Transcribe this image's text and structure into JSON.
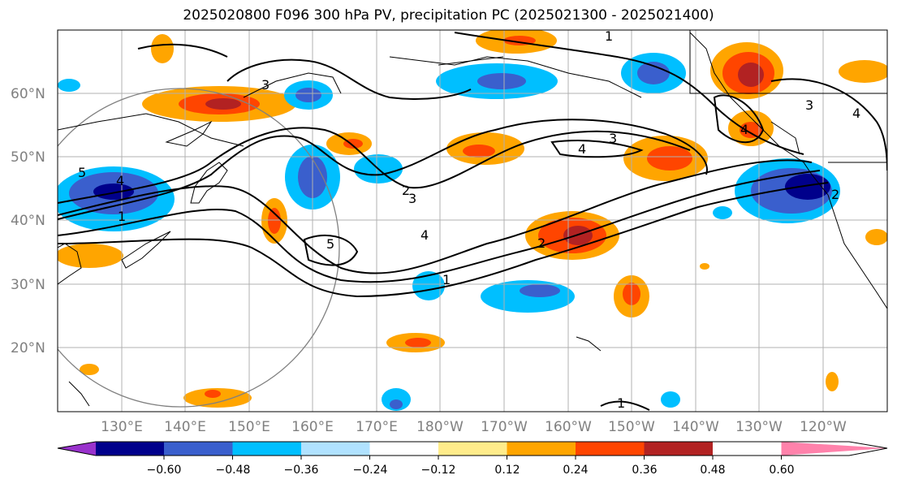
{
  "title": "2025020800 F096 300 hPa PV, precipitation PC (2025021300 - 2025021400)",
  "lat_labels": [
    "60°N",
    "50°N",
    "40°N",
    "30°N",
    "20°N"
  ],
  "lon_labels": [
    "130°E",
    "140°E",
    "150°E",
    "160°E",
    "170°E",
    "180°W",
    "170°W",
    "160°W",
    "150°W",
    "140°W",
    "130°W",
    "120°W"
  ],
  "colorbar": {
    "ticks": [
      "−0.60",
      "−0.48",
      "−0.36",
      "−0.24",
      "−0.12",
      "0.12",
      "0.24",
      "0.36",
      "0.48",
      "0.60"
    ],
    "colors": [
      "#9932CC",
      "#00008B",
      "#3A5FCD",
      "#00BFFF",
      "#B0E2FF",
      "#FFFFFF",
      "#FFEC8B",
      "#FFA500",
      "#FF4500",
      "#B22222",
      "#FF82AB"
    ]
  },
  "contour_labels": [
    "1",
    "2",
    "3",
    "4",
    "5"
  ]
}
